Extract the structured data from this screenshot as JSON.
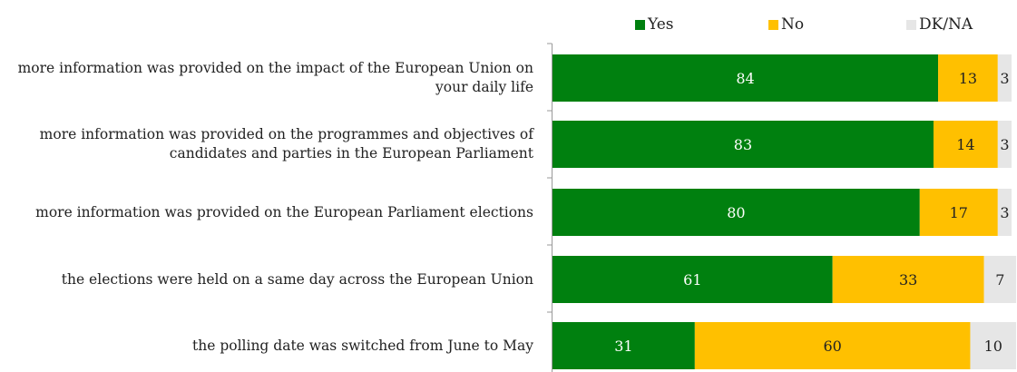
{
  "chart_data": {
    "type": "bar",
    "orientation": "horizontal",
    "stacked": true,
    "categories": [
      "more information was provided on the impact of the European Union on your daily life",
      "more information was provided on the programmes and objectives of candidates and parties in the European Parliament",
      "more information was provided on the European Parliament elections",
      "the elections were held on a same day across the European Union",
      "the polling date was switched from June to May"
    ],
    "series": [
      {
        "name": "Yes",
        "color": "#00800F",
        "text_color": "#ffffff",
        "values": [
          84,
          83,
          80,
          61,
          31
        ]
      },
      {
        "name": "No",
        "color": "#FFC000",
        "text_color": "#222222",
        "values": [
          13,
          14,
          17,
          33,
          60
        ]
      },
      {
        "name": "DK/NA",
        "color": "#E6E6E6",
        "text_color": "#222222",
        "values": [
          3,
          3,
          3,
          7,
          10
        ]
      }
    ],
    "xlim": [
      0,
      100
    ],
    "legend_position": "top"
  }
}
